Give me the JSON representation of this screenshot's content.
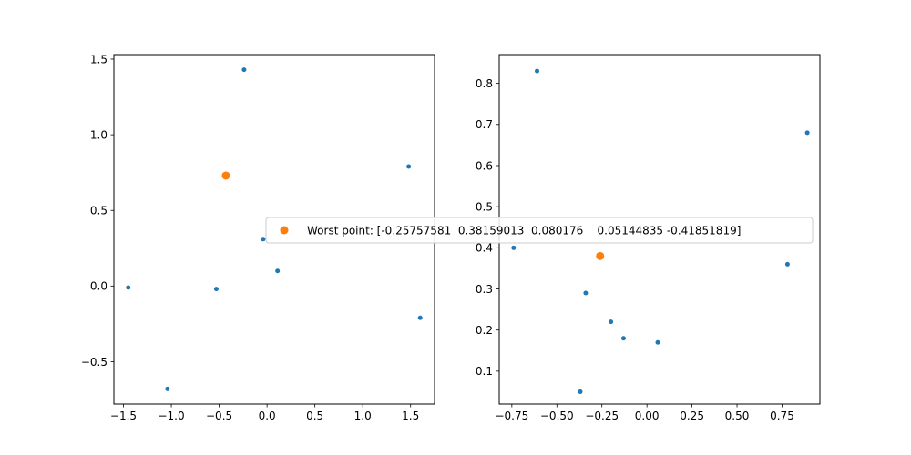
{
  "chart_data": [
    {
      "type": "scatter",
      "title": "",
      "xlabel": "",
      "ylabel": "",
      "xlim": [
        -1.6,
        1.75
      ],
      "ylim": [
        -0.78,
        1.53
      ],
      "xticks": [
        -1.5,
        -1.0,
        -0.5,
        0.0,
        0.5,
        1.0,
        1.5
      ],
      "xtick_labels": [
        "−1.5",
        "−1.0",
        "−0.5",
        "0.0",
        "0.5",
        "1.0",
        "1.5"
      ],
      "yticks": [
        -0.5,
        0.0,
        0.5,
        1.0,
        1.5
      ],
      "ytick_labels": [
        "−0.5",
        "0.0",
        "0.5",
        "1.0",
        "1.5"
      ],
      "grid": false,
      "series": [
        {
          "color": "#1f77b4",
          "marker_size": "small",
          "points": [
            [
              -0.24,
              1.43
            ],
            [
              1.48,
              0.79
            ],
            [
              -0.04,
              0.31
            ],
            [
              0.11,
              0.1
            ],
            [
              -1.45,
              -0.01
            ],
            [
              -0.53,
              -0.02
            ],
            [
              1.6,
              -0.21
            ],
            [
              -1.04,
              -0.68
            ]
          ]
        },
        {
          "name": "Worst point: [-0.25757581  0.38159013  0.080176    0.05144835 -0.41851819]",
          "color": "#ff7f0e",
          "marker_size": "large",
          "points": [
            [
              -0.43,
              0.73
            ]
          ]
        }
      ]
    },
    {
      "type": "scatter",
      "title": "",
      "xlabel": "",
      "ylabel": "",
      "xlim": [
        -0.82,
        0.96
      ],
      "ylim": [
        0.02,
        0.87
      ],
      "xticks": [
        -0.75,
        -0.5,
        -0.25,
        0.0,
        0.25,
        0.5,
        0.75
      ],
      "xtick_labels": [
        "−0.75",
        "−0.50",
        "−0.25",
        "0.00",
        "0.25",
        "0.50",
        "0.75"
      ],
      "yticks": [
        0.1,
        0.2,
        0.3,
        0.4,
        0.5,
        0.6,
        0.7,
        0.8
      ],
      "ytick_labels": [
        "0.1",
        "0.2",
        "0.3",
        "0.4",
        "0.5",
        "0.6",
        "0.7",
        "0.8"
      ],
      "grid": false,
      "series": [
        {
          "color": "#1f77b4",
          "marker_size": "small",
          "points": [
            [
              -0.61,
              0.83
            ],
            [
              0.89,
              0.68
            ],
            [
              -0.74,
              0.4
            ],
            [
              0.78,
              0.36
            ],
            [
              -0.34,
              0.29
            ],
            [
              -0.2,
              0.22
            ],
            [
              -0.13,
              0.18
            ],
            [
              0.06,
              0.17
            ],
            [
              -0.37,
              0.05
            ]
          ]
        },
        {
          "color": "#ff7f0e",
          "marker_size": "large",
          "points": [
            [
              -0.26,
              0.38
            ]
          ]
        }
      ]
    }
  ],
  "legend": {
    "placement": "center, spanning both subplots",
    "label": "Worst point: [-0.25757581  0.38159013  0.080176    0.05144835 -0.41851819]",
    "marker_color": "#ff7f0e"
  }
}
